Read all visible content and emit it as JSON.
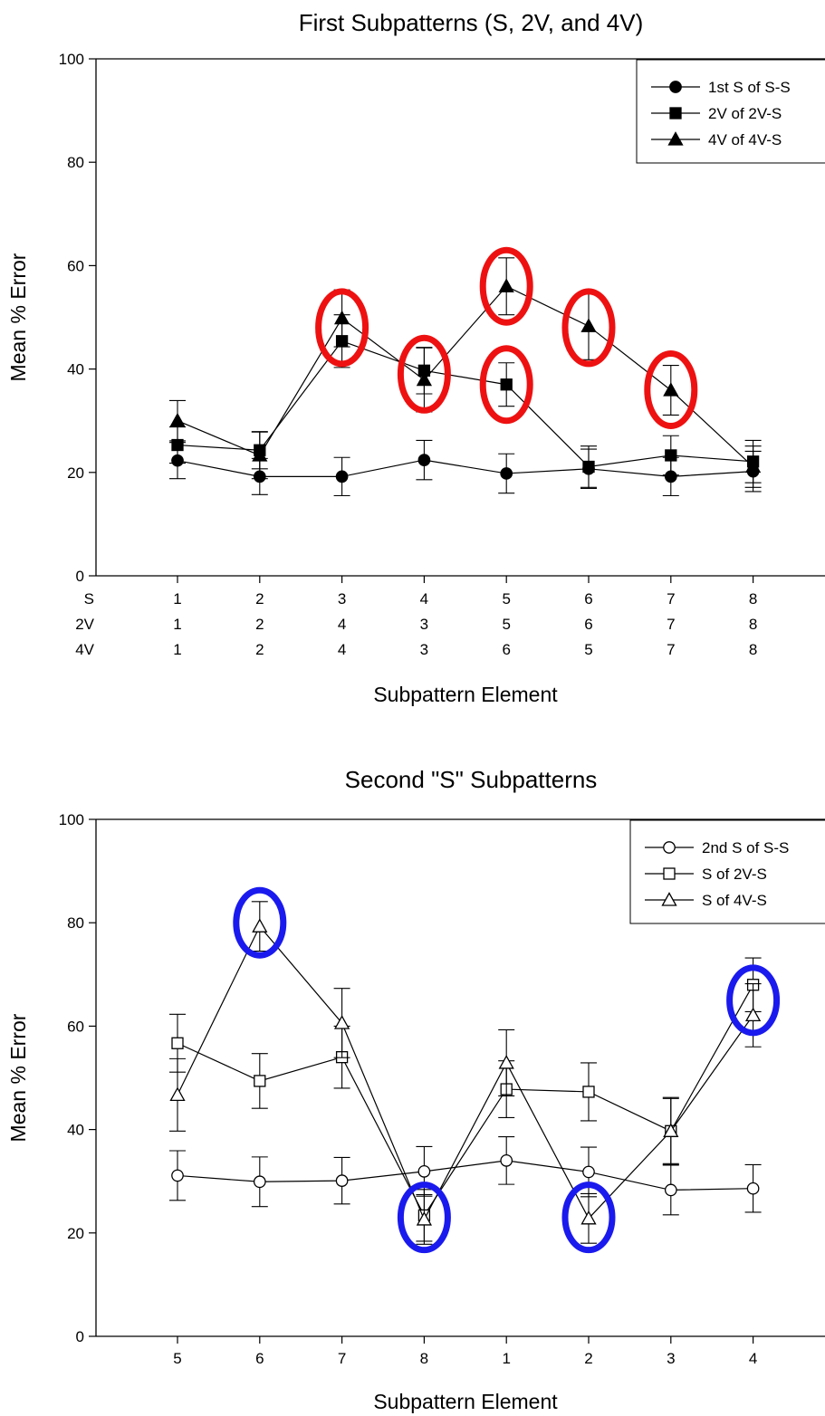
{
  "chart_data": [
    {
      "type": "line",
      "title": "First Subpatterns (S, 2V, and 4V)",
      "xlabel": "Subpattern Element",
      "ylabel": "Mean % Error",
      "ylim": [
        0,
        100
      ],
      "yticks": [
        "0",
        "20",
        "40",
        "60",
        "80",
        "100"
      ],
      "x_label_rows": [
        {
          "name": "S",
          "labels": [
            "1",
            "2",
            "3",
            "4",
            "5",
            "6",
            "7",
            "8"
          ]
        },
        {
          "name": "2V",
          "labels": [
            "1",
            "2",
            "4",
            "3",
            "5",
            "6",
            "7",
            "8"
          ]
        },
        {
          "name": "4V",
          "labels": [
            "1",
            "2",
            "4",
            "3",
            "6",
            "5",
            "7",
            "8"
          ]
        }
      ],
      "legend_position": "top-right",
      "grid": false,
      "series": [
        {
          "name": "1st S of S-S",
          "marker": "circle",
          "filled": true,
          "values": [
            22.3,
            19.2,
            19.2,
            22.4,
            19.8,
            20.7,
            19.2,
            20.2
          ],
          "errors": [
            3.5,
            3.5,
            3.7,
            3.8,
            3.8,
            3.8,
            3.7,
            3.9
          ]
        },
        {
          "name": "2V of 2V-S",
          "marker": "square",
          "filled": true,
          "values": [
            25.3,
            24.3,
            45.4,
            39.7,
            37.0,
            21.1,
            23.3,
            22.1
          ],
          "errors": [
            3.5,
            3.6,
            5.1,
            4.5,
            4.2,
            4.0,
            3.8,
            4.1
          ]
        },
        {
          "name": "4V of 4V-S",
          "marker": "triangle",
          "filled": true,
          "values": [
            30.0,
            23.3,
            49.8,
            37.9,
            56.0,
            48.3,
            35.9,
            21.1
          ],
          "errors": [
            3.9,
            4.5,
            5.5,
            6.2,
            5.5,
            6.5,
            4.8,
            4.0
          ]
        }
      ],
      "highlight_color": "#ee1111",
      "highlights": [
        {
          "point": 3,
          "y": 48
        },
        {
          "point": 4,
          "y": 39
        },
        {
          "point": 5,
          "y": 56
        },
        {
          "point": 5,
          "y": 37
        },
        {
          "point": 6,
          "y": 48
        },
        {
          "point": 7,
          "y": 36
        }
      ]
    },
    {
      "type": "line",
      "title": "Second \"S\" Subpatterns",
      "xlabel": "Subpattern Element",
      "ylabel": "Mean % Error",
      "ylim": [
        0,
        100
      ],
      "yticks": [
        "0",
        "20",
        "40",
        "60",
        "80",
        "100"
      ],
      "categories": [
        "5",
        "6",
        "7",
        "8",
        "1",
        "2",
        "3",
        "4"
      ],
      "legend_position": "top-right",
      "grid": false,
      "series": [
        {
          "name": "2nd S of S-S",
          "marker": "circle",
          "filled": false,
          "values": [
            31.1,
            29.9,
            30.1,
            31.9,
            34.0,
            31.8,
            28.3,
            28.6
          ],
          "errors": [
            4.8,
            4.8,
            4.5,
            4.8,
            4.6,
            4.8,
            4.8,
            4.6
          ]
        },
        {
          "name": "S of 2V-S",
          "marker": "square",
          "filled": false,
          "values": [
            56.7,
            49.4,
            54.0,
            23.4,
            47.8,
            47.3,
            39.7,
            68.0
          ],
          "errors": [
            5.6,
            5.3,
            6.0,
            5.0,
            5.5,
            5.6,
            6.5,
            5.2
          ]
        },
        {
          "name": "S of 4V-S",
          "marker": "triangle",
          "filled": false,
          "values": [
            46.7,
            79.3,
            60.6,
            22.6,
            52.9,
            22.8,
            39.7,
            62.1
          ],
          "errors": [
            7.0,
            4.8,
            6.7,
            4.8,
            6.4,
            4.8,
            6.3,
            6.1
          ]
        }
      ],
      "highlight_color": "#1a1aee",
      "highlights": [
        {
          "point": 2,
          "y": 80
        },
        {
          "point": 4,
          "y": 23
        },
        {
          "point": 6,
          "y": 23
        },
        {
          "point": 8,
          "y": 65
        }
      ]
    }
  ]
}
